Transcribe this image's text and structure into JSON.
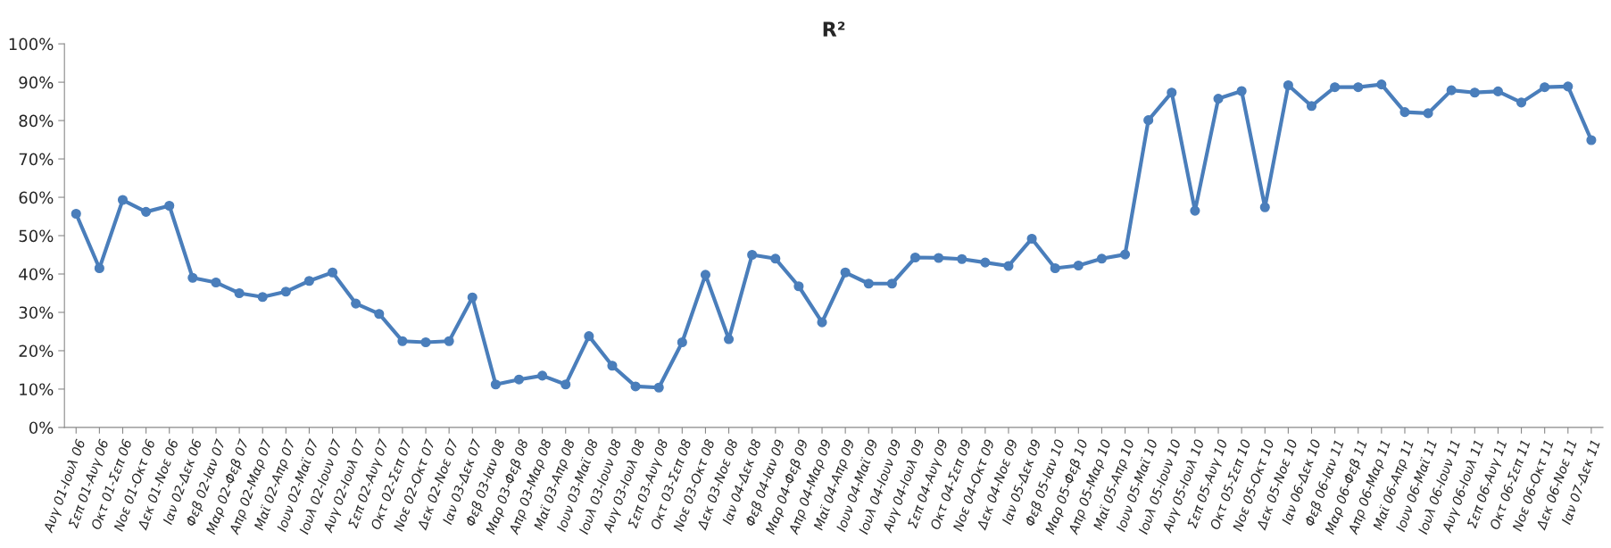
{
  "chart_data": {
    "type": "line",
    "title": "R²",
    "categories": [
      "Αυγ 01-Ιουλ 06",
      "Σεπ 01-Αυγ 06",
      "Οκτ 01-Σεπ 06",
      "Νοε 01-Οκτ 06",
      "Δεκ 01-Νοε 06",
      "Ιαν 02-Δεκ 06",
      "Φεβ 02-Ιαν 07",
      "Μαρ 02-Φεβ 07",
      "Απρ 02-Μαρ 07",
      "Μαϊ 02-Απρ 07",
      "Ιουν 02-Μαϊ 07",
      "Ιουλ 02-Ιουν 07",
      "Αυγ 02-Ιουλ 07",
      "Σεπ 02-Αυγ 07",
      "Οκτ 02-Σεπ 07",
      "Νοε 02-Οκτ 07",
      "Δεκ 02-Νοε 07",
      "Ιαν 03-Δεκ 07",
      "Φεβ 03-Ιαν 08",
      "Μαρ 03-Φεβ 08",
      "Απρ 03-Μαρ 08",
      "Μαϊ 03-Απρ 08",
      "Ιουν 03-Μαϊ 08",
      "Ιουλ 03-Ιουν 08",
      "Αυγ 03-Ιουλ 08",
      "Σεπ 03-Αυγ 08",
      "Οκτ 03-Σεπ 08",
      "Νοε 03-Οκτ 08",
      "Δεκ 03-Νοε 08",
      "Ιαν 04-Δεκ 08",
      "Φεβ 04-Ιαν 09",
      "Μαρ 04-Φεβ 09",
      "Απρ 04-Μαρ 09",
      "Μαϊ 04-Απρ 09",
      "Ιουν 04-Μαϊ 09",
      "Ιουλ 04-Ιουν 09",
      "Αυγ 04-Ιουλ 09",
      "Σεπ 04-Αυγ 09",
      "Οκτ 04-Σεπ 09",
      "Νοε 04-Οκτ 09",
      "Δεκ 04-Νοε 09",
      "Ιαν 05-Δεκ 09",
      "Φεβ 05-Ιαν 10",
      "Μαρ 05-Φεβ 10",
      "Απρ 05-Μαρ 10",
      "Μαϊ 05-Απρ 10",
      "Ιουν 05-Μαϊ 10",
      "Ιουλ 05-Ιουν 10",
      "Αυγ 05-Ιουλ 10",
      "Σεπ 05-Αυγ 10",
      "Οκτ 05-Σεπ 10",
      "Νοε 05-Οκτ 10",
      "Δεκ 05-Νοε 10",
      "Ιαν 06-Δεκ 10",
      "Φεβ 06-Ιαν 11",
      "Μαρ 06-Φεβ 11",
      "Απρ 06-Μαρ 11",
      "Μαϊ 06-Απρ 11",
      "Ιουν 06-Μαϊ 11",
      "Ιουλ 06-Ιουν 11",
      "Αυγ 06-Ιουλ 11",
      "Σεπ 06-Αυγ 11",
      "Οκτ 06-Σεπ 11",
      "Νοε 06-Οκτ 11",
      "Δεκ 06-Νοε 11",
      "Ιαν 07-Δεκ 11"
    ],
    "series": [
      {
        "color": "#4a7ebb",
        "values": [
          55.7,
          41.5,
          59.3,
          56.2,
          57.8,
          39,
          37.8,
          35,
          34,
          35.4,
          38.2,
          40.4,
          32.3,
          29.6,
          22.5,
          22.2,
          22.5,
          33.9,
          11.2,
          12.5,
          13.5,
          11.2,
          23.8,
          16.1,
          10.7,
          10.4,
          22.2,
          39.8,
          23,
          45,
          44,
          36.8,
          27.4,
          40.4,
          37.5,
          37.5,
          44.3,
          44.2,
          43.9,
          43,
          42.1,
          49.2,
          41.5,
          42.2,
          44,
          45.1,
          80.1,
          87.3,
          56.5,
          85.7,
          87.7,
          57.4,
          89.2,
          83.8,
          88.7,
          88.7,
          89.4,
          82.2,
          81.9,
          87.9,
          87.3,
          87.6,
          84.7,
          88.7,
          88.9,
          74.9
        ]
      }
    ],
    "ylim": [
      0,
      100
    ],
    "yticks": [
      {
        "value": 0,
        "label": "0%"
      },
      {
        "value": 10,
        "label": "10%"
      },
      {
        "value": 20,
        "label": "20%"
      },
      {
        "value": 30,
        "label": "30%"
      },
      {
        "value": 40,
        "label": "40%"
      },
      {
        "value": 50,
        "label": "50%"
      },
      {
        "value": 60,
        "label": "60%"
      },
      {
        "value": 70,
        "label": "70%"
      },
      {
        "value": 80,
        "label": "80%"
      },
      {
        "value": 90,
        "label": "90%"
      },
      {
        "value": 100,
        "label": "100%"
      }
    ],
    "marker": "circle",
    "line_style": "solid"
  }
}
